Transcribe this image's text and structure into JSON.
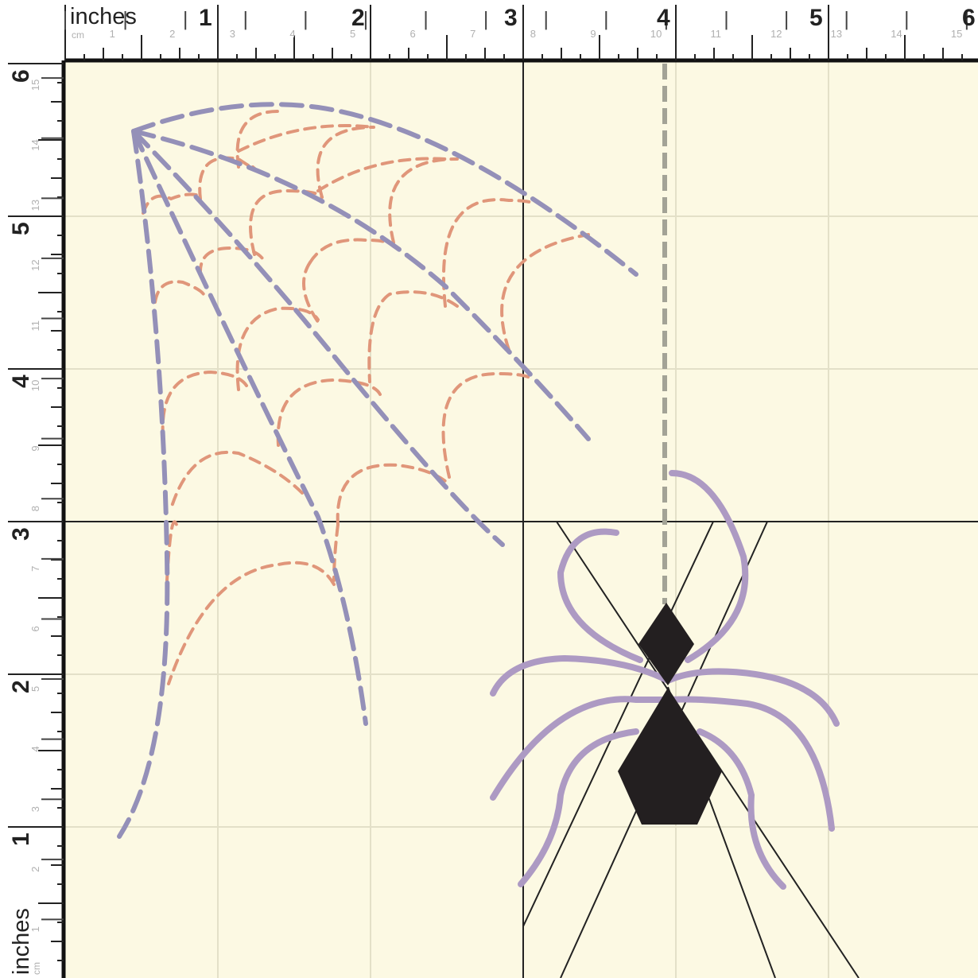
{
  "ruler": {
    "top_unit_label": "inches",
    "top_cm_label": "cm",
    "left_unit_label": "inches",
    "left_cm_label": "cm",
    "inch_numbers": [
      "1",
      "2",
      "3",
      "4",
      "5",
      "6"
    ],
    "cm_numbers": [
      "1",
      "2",
      "3",
      "4",
      "5",
      "6",
      "7",
      "8",
      "9",
      "10",
      "11",
      "12",
      "13",
      "14",
      "15"
    ]
  },
  "colors": {
    "canvas": "#fcf9e3",
    "grid": "#e3e0c8",
    "web_radial": "#9490b8",
    "web_spiral": "#e0967a",
    "spider_thread": "#a3a396",
    "spider_legs": "#ad9ac3",
    "spider_body": "#231f20",
    "guide_lines": "#222222",
    "ruler_text": "#222222",
    "ruler_cm_text": "#b0b0b0"
  },
  "icons": {
    "web": "spider-web-icon",
    "spider": "spider-icon"
  }
}
